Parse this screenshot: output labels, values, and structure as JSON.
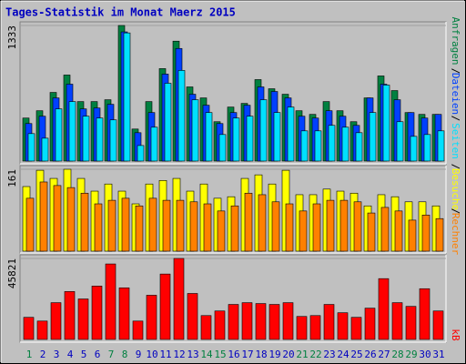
{
  "chart_data": {
    "type": "bar",
    "title": "Tages-Statistik im Monat Maerz 2015",
    "categories": [
      "1",
      "2",
      "3",
      "4",
      "5",
      "6",
      "7",
      "8",
      "9",
      "10",
      "11",
      "12",
      "13",
      "14",
      "15",
      "16",
      "17",
      "18",
      "19",
      "20",
      "21",
      "22",
      "23",
      "24",
      "25",
      "26",
      "27",
      "28",
      "29",
      "30",
      "31"
    ],
    "category_colors": [
      "#008040",
      "#0000c0",
      "#0000c0",
      "#0000c0",
      "#0000c0",
      "#0000c0",
      "#008040",
      "#008040",
      "#0000c0",
      "#0000c0",
      "#0000c0",
      "#0000c0",
      "#0000c0",
      "#008040",
      "#008040",
      "#0000c0",
      "#0000c0",
      "#0000c0",
      "#0000c0",
      "#0000c0",
      "#008040",
      "#008040",
      "#0000c0",
      "#0000c0",
      "#0000c0",
      "#0000c0",
      "#0000c0",
      "#008040",
      "#008040",
      "#0000c0",
      "#0000c0"
    ],
    "legend_separator": "/",
    "panels": [
      {
        "ylim": [
          0,
          1333
        ],
        "yticks": [
          1333
        ],
        "series": [
          {
            "name": "Anfragen",
            "color": "#008040",
            "values": [
              423,
              495,
              675,
              846,
              585,
              585,
              603,
              1333,
              315,
              585,
              909,
              1179,
              729,
              621,
              387,
              531,
              567,
              801,
              711,
              657,
              495,
              459,
              585,
              495,
              387,
              621,
              837,
              693,
              477,
              459,
              459
            ]
          },
          {
            "name": "Dateien",
            "color": "#0040ff",
            "values": [
              369,
              441,
              621,
              756,
              513,
              522,
              558,
              1270,
              279,
              477,
              855,
              1107,
              657,
              549,
              369,
              477,
              549,
              729,
              684,
              621,
              441,
              423,
              495,
              441,
              351,
              621,
              756,
              603,
              477,
              423,
              459
            ]
          },
          {
            "name": "Seiten",
            "color": "#00e0ff",
            "values": [
              270,
              225,
              513,
              585,
              441,
              423,
              405,
              1260,
              153,
              333,
              765,
              891,
              603,
              477,
              261,
              423,
              441,
              603,
              477,
              531,
              297,
              297,
              351,
              333,
              279,
              477,
              747,
              387,
              243,
              261,
              297
            ]
          }
        ]
      },
      {
        "ylim": [
          0,
          161
        ],
        "yticks": [
          161
        ],
        "series": [
          {
            "name": "Besuche",
            "color": "#ffff00",
            "values": [
              127,
              159,
              143,
              161,
              143,
              118,
              132,
              118,
              93,
              132,
              139,
              143,
              118,
              132,
              104,
              107,
              143,
              150,
              132,
              159,
              111,
              111,
              122,
              118,
              114,
              89,
              111,
              107,
              97,
              97,
              89
            ]
          },
          {
            "name": "Rechner",
            "color": "#ff8000",
            "values": [
              104,
              136,
              129,
              125,
              114,
              93,
              100,
              104,
              89,
              104,
              100,
              100,
              97,
              93,
              79,
              89,
              114,
              111,
              97,
              93,
              79,
              93,
              100,
              100,
              97,
              75,
              86,
              79,
              61,
              71,
              64
            ]
          }
        ]
      },
      {
        "ylim": [
          0,
          45821
        ],
        "yticks": [
          45821
        ],
        "series": [
          {
            "name": "kB",
            "color": "#ff0000",
            "values": [
              12500,
              10400,
              20800,
              27100,
              22900,
              30200,
              42700,
              29200,
              10400,
              25000,
              37000,
              45821,
              26000,
              13500,
              16100,
              19800,
              20800,
              20300,
              19800,
              20800,
              13000,
              13500,
              19800,
              15100,
              12500,
              17700,
              34400,
              20800,
              18700,
              28700,
              16100
            ]
          }
        ]
      }
    ]
  }
}
